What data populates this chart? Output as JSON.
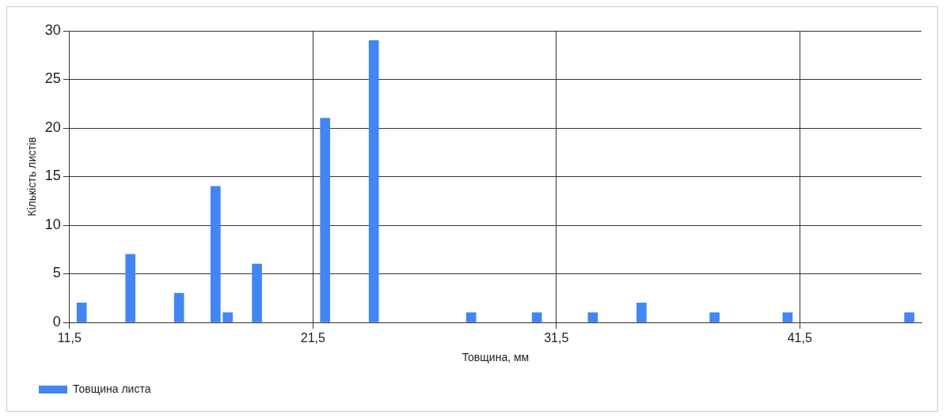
{
  "chart_data": {
    "type": "bar",
    "xlabel": "Товщина, мм",
    "ylabel": "Кількість листів",
    "x": [
      12.0,
      14.0,
      16.0,
      17.5,
      18.0,
      19.2,
      22.0,
      24.0,
      28.0,
      30.7,
      33.0,
      35.0,
      38.0,
      41.0,
      46.0
    ],
    "series": [
      {
        "name": "Товщина листа",
        "color": "#4285f4",
        "values": [
          2,
          7,
          3,
          14,
          1,
          6,
          21,
          29,
          1,
          1,
          1,
          2,
          1,
          1,
          1
        ]
      }
    ],
    "xlim": [
      11.5,
      46.5
    ],
    "xticks": [
      {
        "value": 11.5,
        "label": "11,5"
      },
      {
        "value": 21.5,
        "label": "21,5"
      },
      {
        "value": 31.5,
        "label": "31,5"
      },
      {
        "value": 41.5,
        "label": "41,5"
      }
    ],
    "ylim": [
      0,
      30
    ],
    "yticks": [
      0,
      5,
      10,
      15,
      20,
      25,
      30
    ],
    "grid": true,
    "legend": "bottom left"
  }
}
